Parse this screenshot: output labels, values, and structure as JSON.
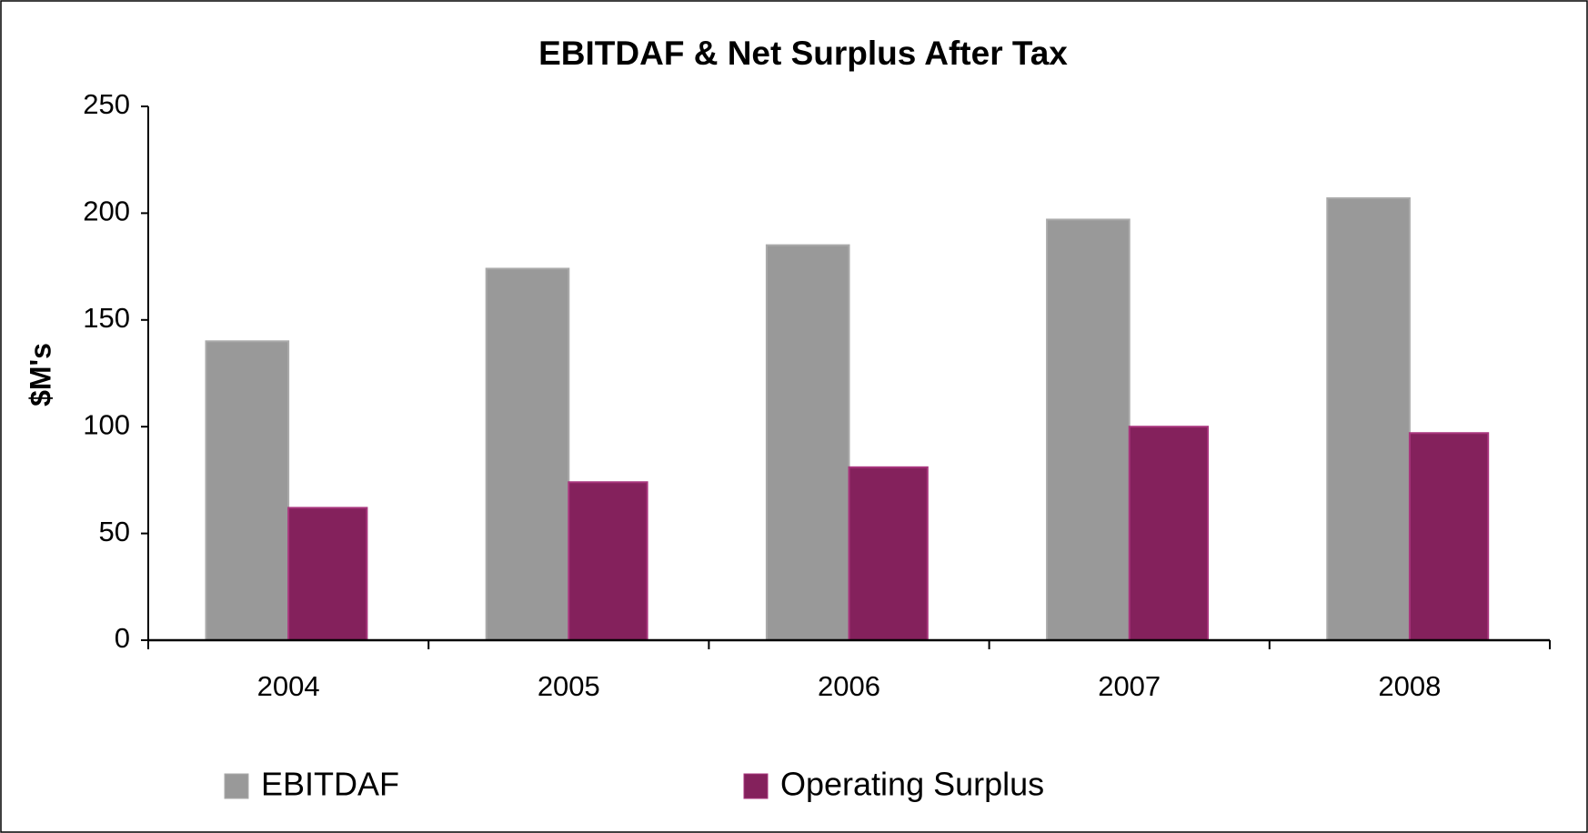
{
  "chart_data": {
    "type": "bar",
    "title": "EBITDAF & Net Surplus After Tax",
    "y_label": "$M's",
    "categories": [
      "2004",
      "2005",
      "2006",
      "2007",
      "2008"
    ],
    "series": [
      {
        "name": "EBITDAF",
        "color": "#999999",
        "values": [
          140,
          174,
          185,
          197,
          207
        ]
      },
      {
        "name": "Operating Surplus",
        "color": "#84215c",
        "values": [
          62,
          74,
          81,
          100,
          97
        ]
      }
    ],
    "ylim": [
      0,
      250
    ],
    "yticks": [
      0,
      50,
      100,
      150,
      200,
      250
    ],
    "grid": false,
    "legend": "bottom"
  }
}
